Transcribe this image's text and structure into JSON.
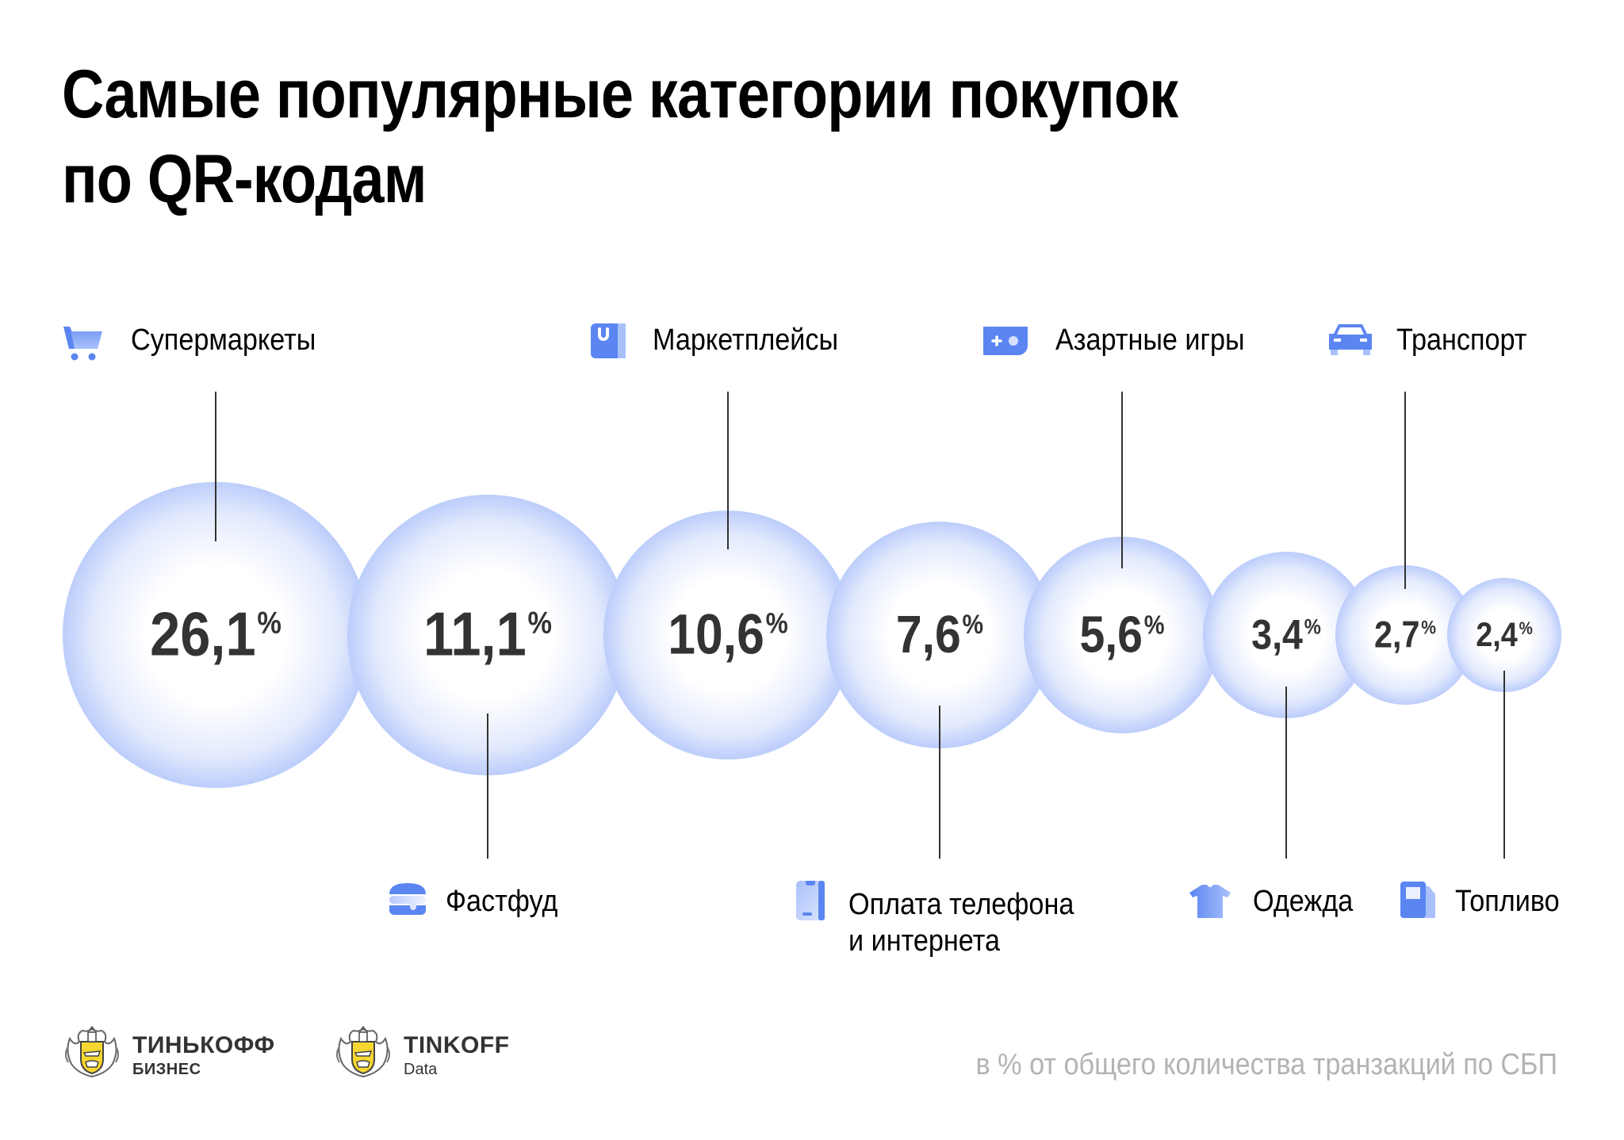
{
  "title": {
    "line1": "Самые популярные категории покупок",
    "line2": "по QR-кодам"
  },
  "colors": {
    "bubble_edge": "#bccdfb",
    "bubble_center": "#ffffff",
    "icon_primary": "#5b86f2",
    "icon_light": "#a9c0fb",
    "value_text": "#333333",
    "footnote": "#b3b3b3"
  },
  "chart_data": {
    "type": "bubble",
    "title": "Самые популярные категории покупок по QR-кодам",
    "unit": "%",
    "note": "в % от общего количества транзакций по СБП",
    "categories": [
      "Супермаркеты",
      "Фастфуд",
      "Маркетплейсы",
      "Оплата телефона и интернета",
      "Азартные игры",
      "Одежда",
      "Транспорт",
      "Топливо"
    ],
    "values": [
      26.1,
      11.1,
      10.6,
      7.6,
      5.6,
      3.4,
      2.7,
      2.4
    ],
    "items": [
      {
        "label": "Супермаркеты",
        "label_lines": [
          "Супермаркеты"
        ],
        "value": 26.1,
        "value_text": "26,1",
        "icon": "cart-icon",
        "label_position": "top"
      },
      {
        "label": "Фастфуд",
        "label_lines": [
          "Фастфуд"
        ],
        "value": 11.1,
        "value_text": "11,1",
        "icon": "burger-icon",
        "label_position": "bottom"
      },
      {
        "label": "Маркетплейсы",
        "label_lines": [
          "Маркетплейсы"
        ],
        "value": 10.6,
        "value_text": "10,6",
        "icon": "shopping-bag-icon",
        "label_position": "top"
      },
      {
        "label": "Оплата телефона и интернета",
        "label_lines": [
          "Оплата телефона",
          "и интернета"
        ],
        "value": 7.6,
        "value_text": "7,6",
        "icon": "phone-icon",
        "label_position": "bottom"
      },
      {
        "label": "Азартные игры",
        "label_lines": [
          "Азартные игры"
        ],
        "value": 5.6,
        "value_text": "5,6",
        "icon": "gamepad-icon",
        "label_position": "top"
      },
      {
        "label": "Одежда",
        "label_lines": [
          "Одежда"
        ],
        "value": 3.4,
        "value_text": "3,4",
        "icon": "tshirt-icon",
        "label_position": "bottom"
      },
      {
        "label": "Транспорт",
        "label_lines": [
          "Транспорт"
        ],
        "value": 2.7,
        "value_text": "2,7",
        "icon": "car-icon",
        "label_position": "top"
      },
      {
        "label": "Топливо",
        "label_lines": [
          "Топливо"
        ],
        "value": 2.4,
        "value_text": "2,4",
        "icon": "fuel-pump-icon",
        "label_position": "bottom"
      }
    ],
    "percent_sign": "%"
  },
  "footnote": "в % от общего количества транзакций по СБП",
  "logos": [
    {
      "brand": "ТИНЬКОФФ",
      "sub": "БИЗНЕС"
    },
    {
      "brand": "TINKOFF",
      "sub": "Data"
    }
  ]
}
